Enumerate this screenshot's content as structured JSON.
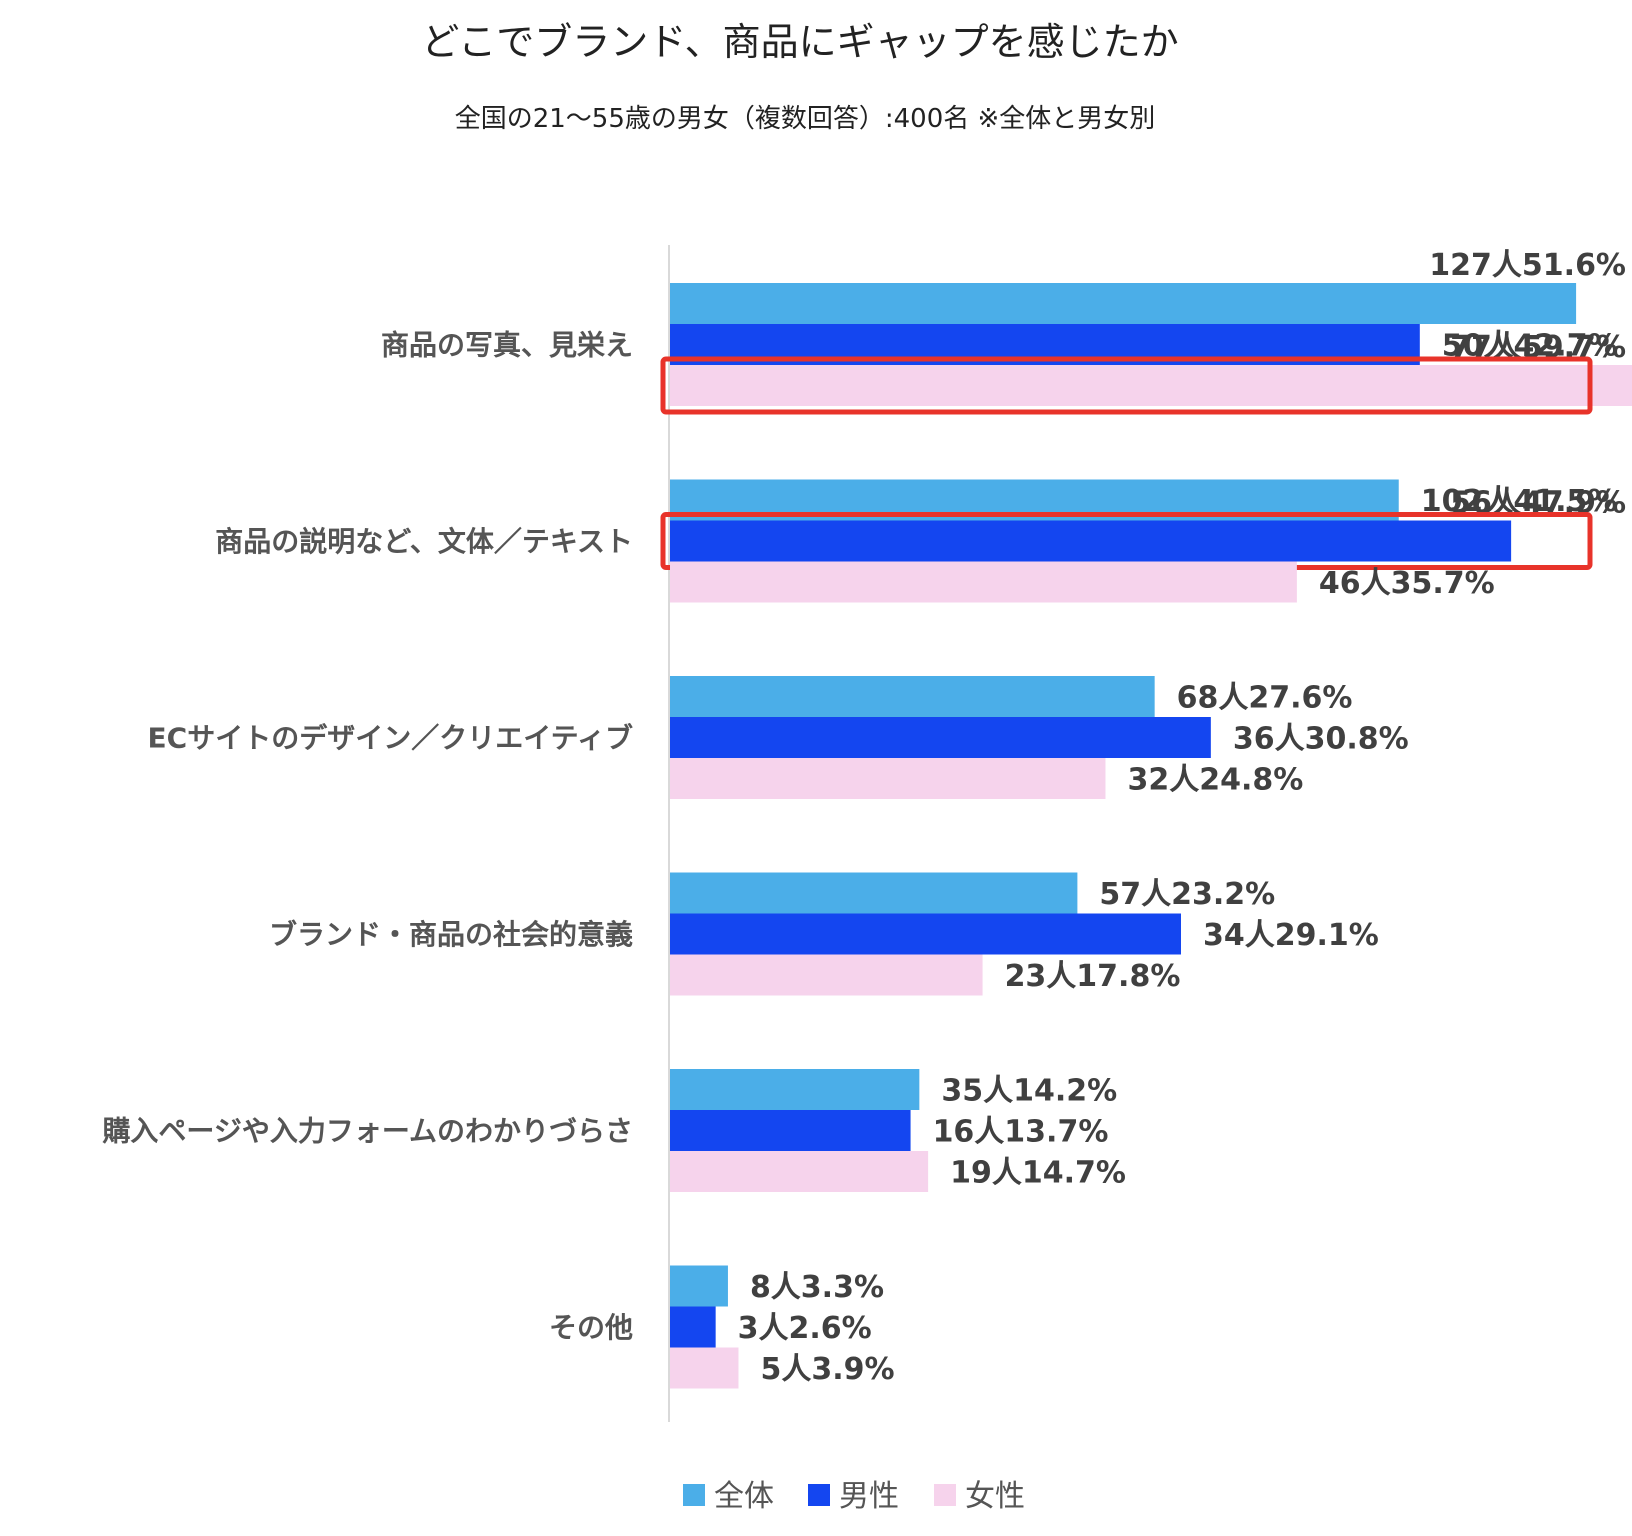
{
  "chart_data": {
    "type": "bar",
    "orientation": "horizontal",
    "title": "どこでブランド、商品にギャップを感じたか",
    "subtitle": "全国の21〜55歳の男女（複数回答）:400名 ※全体と男女別",
    "categories": [
      "商品の写真、見栄え",
      "商品の説明など、文体／テキスト",
      "ECサイトのデザイン／クリエイティブ",
      "ブランド・商品の社会的意義",
      "購入ページや入力フォームのわかりづらさ",
      "その他"
    ],
    "series": [
      {
        "name": "全体",
        "color": "#4baee8",
        "values": [
          51.6,
          41.5,
          27.6,
          23.2,
          14.2,
          3.3
        ],
        "labels": [
          "127人51.6%",
          "102人41.5%",
          "68人27.6%",
          "57人23.2%",
          "35人14.2%",
          "8人3.3%"
        ]
      },
      {
        "name": "男性",
        "color": "#1446f0",
        "values": [
          42.7,
          47.9,
          30.8,
          29.1,
          13.7,
          2.6
        ],
        "labels": [
          "50人42.7%",
          "56人47.9%",
          "36人30.8%",
          "34人29.1%",
          "16人13.7%",
          "3人2.6%"
        ]
      },
      {
        "name": "女性",
        "color": "#f6d3ec",
        "values": [
          59.7,
          35.7,
          24.8,
          17.8,
          14.7,
          3.9
        ],
        "labels": [
          "77人59.7%",
          "46人35.7%",
          "32人24.8%",
          "23人17.8%",
          "19人14.7%",
          "5人3.9%"
        ]
      }
    ],
    "xlim": [
      0,
      60
    ],
    "grid": false,
    "legend": "bottom",
    "highlights": [
      {
        "category_index": 0,
        "series_index": 2,
        "color": "#e8332a"
      },
      {
        "category_index": 1,
        "series_index": 1,
        "color": "#e8332a"
      }
    ]
  }
}
